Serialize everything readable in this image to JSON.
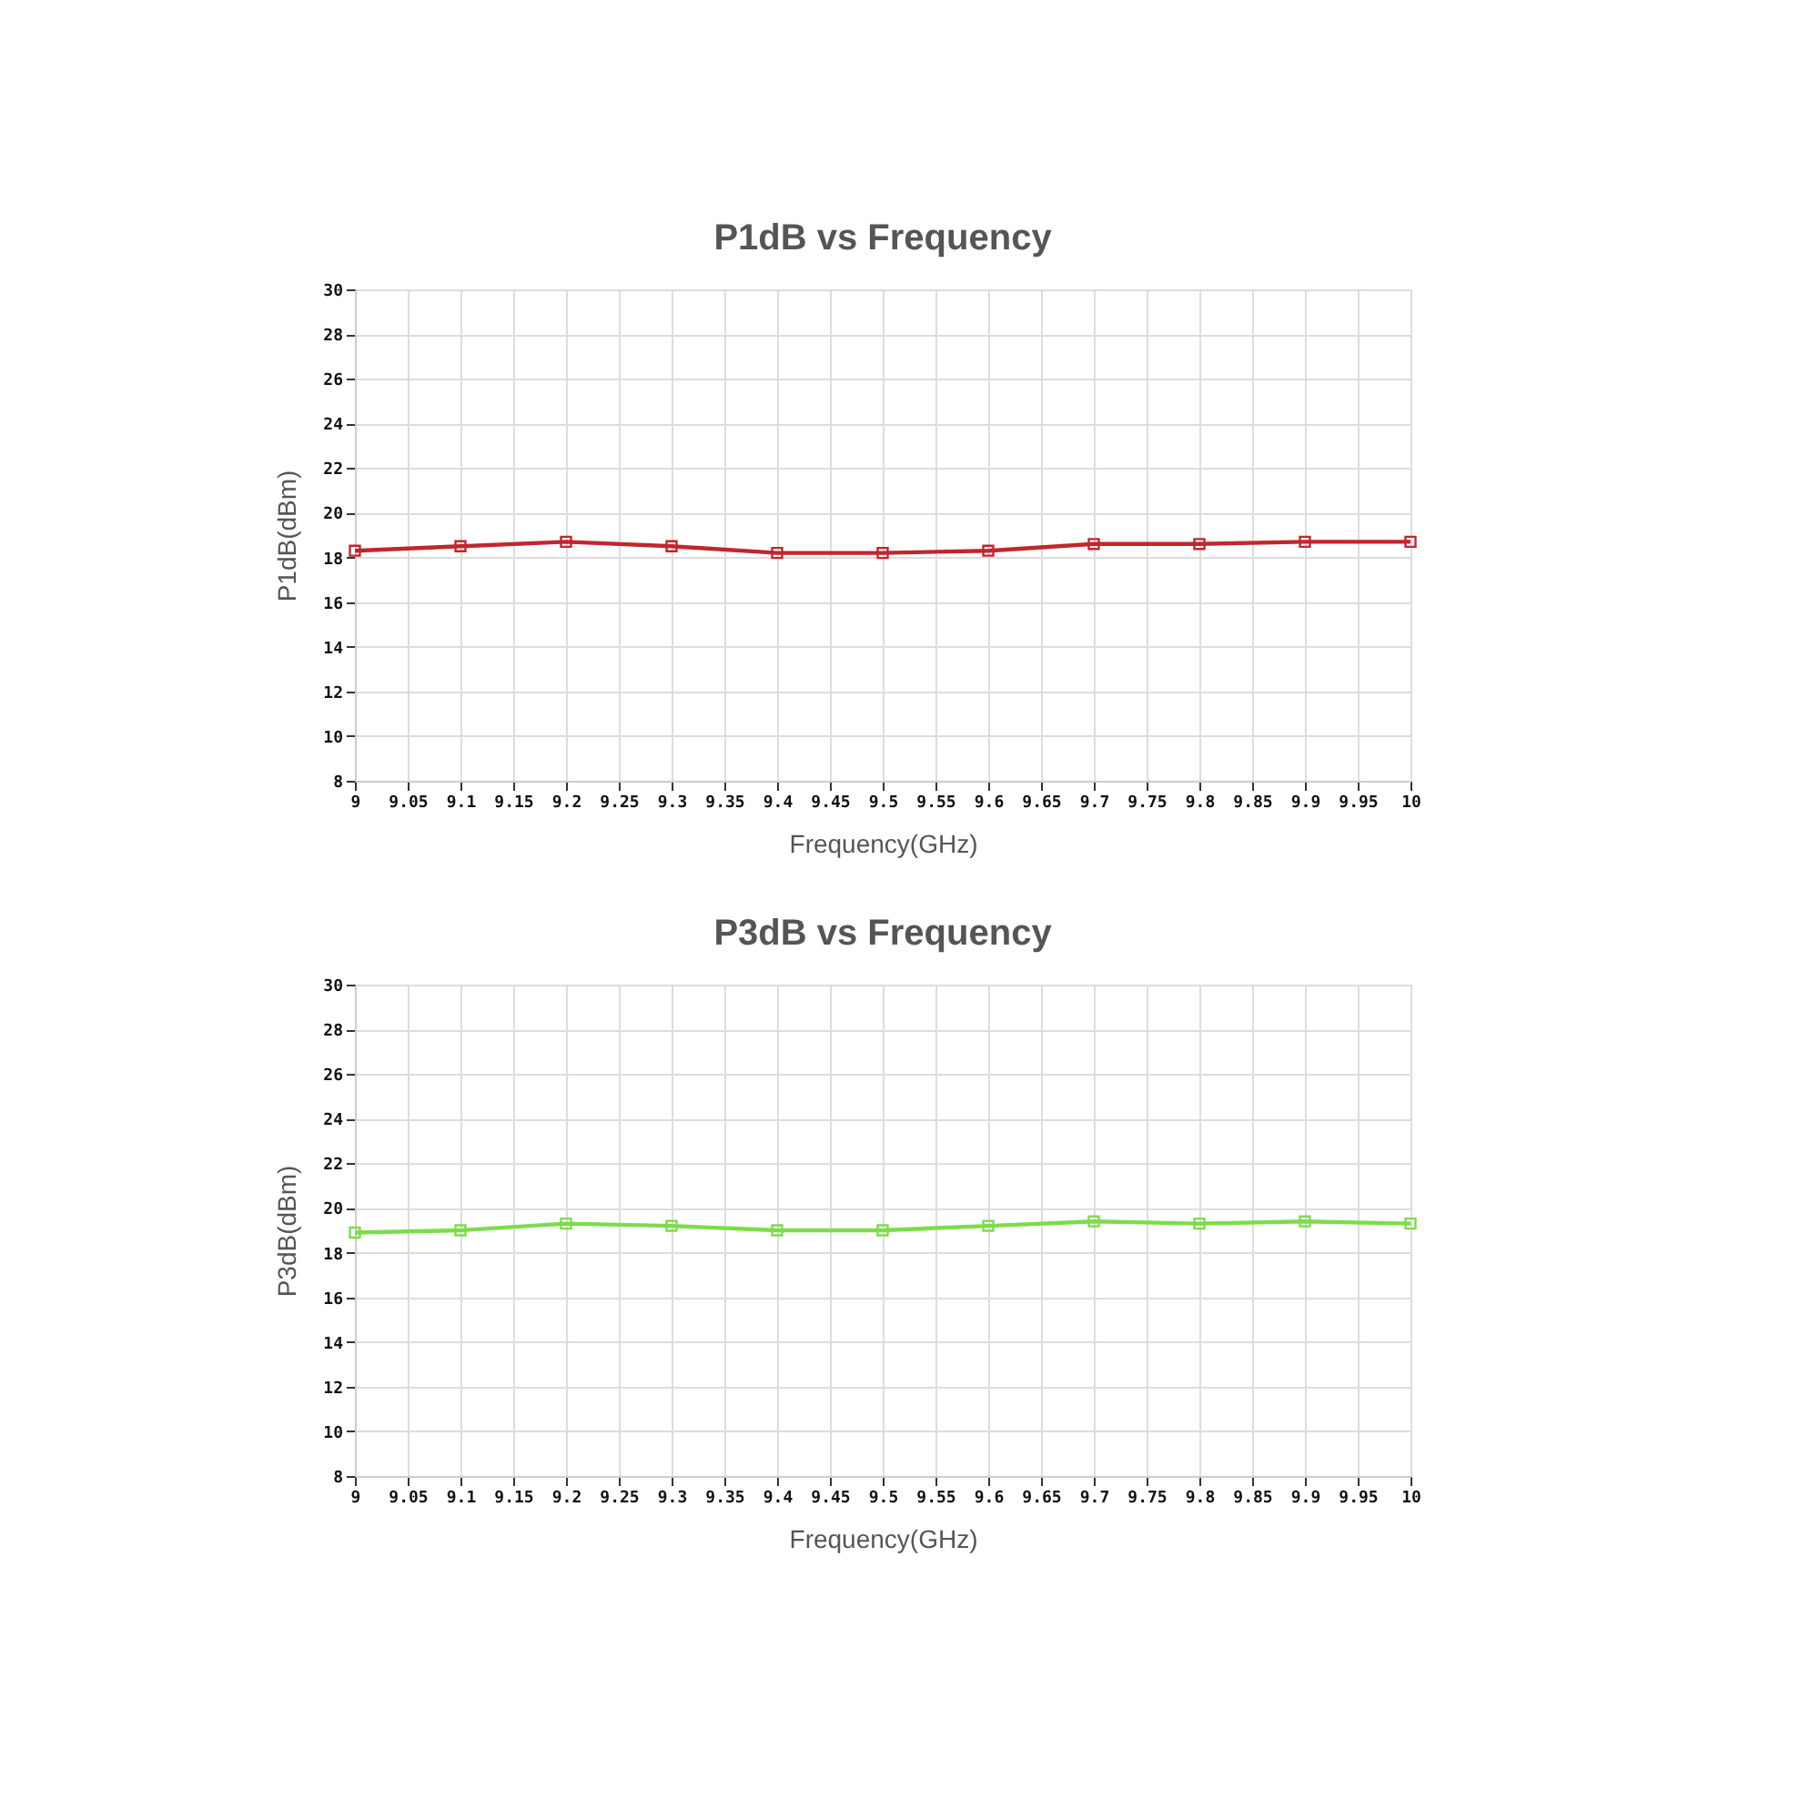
{
  "chart_data": [
    {
      "type": "line",
      "title": "P1dB vs Frequency",
      "xlabel": "Frequency(GHz)",
      "ylabel": "P1dB(dBm)",
      "x": [
        9,
        9.1,
        9.2,
        9.3,
        9.4,
        9.5,
        9.6,
        9.7,
        9.8,
        9.9,
        10
      ],
      "series": [
        {
          "color": "#c0272d",
          "values": [
            18.3,
            18.5,
            18.7,
            18.5,
            18.2,
            18.2,
            18.3,
            18.6,
            18.6,
            18.7,
            18.7
          ]
        }
      ],
      "xlim": [
        9,
        10
      ],
      "xticks": [
        9,
        9.05,
        9.1,
        9.15,
        9.2,
        9.25,
        9.3,
        9.35,
        9.4,
        9.45,
        9.5,
        9.55,
        9.6,
        9.65,
        9.7,
        9.75,
        9.8,
        9.85,
        9.9,
        9.95,
        10
      ],
      "ylim": [
        8,
        30
      ],
      "yticks": [
        8,
        10,
        12,
        14,
        16,
        18,
        20,
        22,
        24,
        26,
        28,
        30
      ],
      "grid": true,
      "marker": "square",
      "line_style": "solid"
    },
    {
      "type": "line",
      "title": "P3dB vs Frequency",
      "xlabel": "Frequency(GHz)",
      "ylabel": "P3dB(dBm)",
      "x": [
        9,
        9.1,
        9.2,
        9.3,
        9.4,
        9.5,
        9.6,
        9.7,
        9.8,
        9.9,
        10
      ],
      "series": [
        {
          "color": "#7ddc4a",
          "values": [
            18.9,
            19.0,
            19.3,
            19.2,
            19.0,
            19.0,
            19.2,
            19.4,
            19.3,
            19.4,
            19.3
          ]
        }
      ],
      "xlim": [
        9,
        10
      ],
      "xticks": [
        9,
        9.05,
        9.1,
        9.15,
        9.2,
        9.25,
        9.3,
        9.35,
        9.4,
        9.45,
        9.5,
        9.55,
        9.6,
        9.65,
        9.7,
        9.75,
        9.8,
        9.85,
        9.9,
        9.95,
        10
      ],
      "ylim": [
        8,
        30
      ],
      "yticks": [
        8,
        10,
        12,
        14,
        16,
        18,
        20,
        22,
        24,
        26,
        28,
        30
      ],
      "grid": true,
      "marker": "square",
      "line_style": "solid"
    }
  ]
}
